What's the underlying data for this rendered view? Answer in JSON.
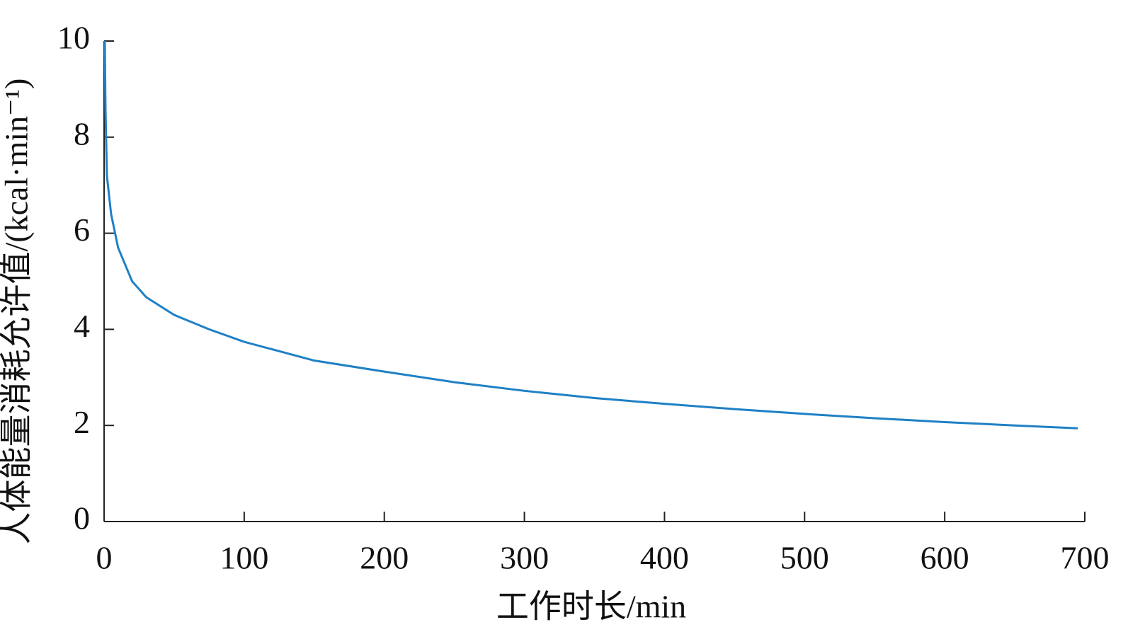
{
  "chart_data": {
    "type": "line",
    "x_label": "工作时长/min",
    "y_label": "人体能量消耗允许值/(kcal·min⁻¹)",
    "x": [
      0.5,
      1,
      2,
      5,
      10,
      20,
      30,
      50,
      75,
      100,
      150,
      200,
      250,
      300,
      350,
      400,
      450,
      500,
      550,
      600,
      650,
      695
    ],
    "series": [
      {
        "color": "#1f80c6",
        "values": [
          10,
          8.6,
          7.2,
          6.4,
          5.7,
          5.0,
          4.67,
          4.3,
          4.0,
          3.74,
          3.35,
          3.12,
          2.9,
          2.72,
          2.57,
          2.45,
          2.34,
          2.24,
          2.15,
          2.07,
          2.0,
          1.94
        ]
      }
    ],
    "xlim": [
      0,
      700
    ],
    "xticks": [
      0,
      100,
      200,
      300,
      400,
      500,
      600,
      700
    ],
    "ylim": [
      0,
      10
    ],
    "yticks": [
      0,
      2,
      4,
      6,
      8,
      10
    ]
  }
}
